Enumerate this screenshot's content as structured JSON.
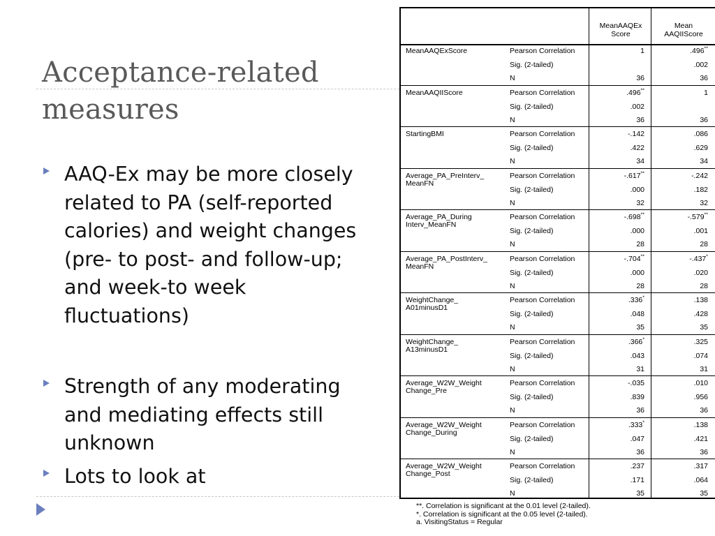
{
  "title": "Acceptance-related measures",
  "bullets": [
    "AAQ-Ex may be more closely related to PA (self-reported calories) and weight changes (pre- to post- and follow-up; and week-to week fluctuations)",
    "Strength of any moderating and mediating effects still unknown",
    "Lots to look at"
  ],
  "colors": {
    "title": "#595959",
    "bullet_marker": "#6b7fbf",
    "divider": "#c8c8c8"
  },
  "table": {
    "columns": [
      "MeanAAQEx\nScore",
      "Mean\nAAQIIScore"
    ],
    "stats": [
      "Pearson Correlation",
      "Sig. (2-tailed)",
      "N"
    ],
    "rows": [
      {
        "variable": "MeanAAQExScore",
        "col1": {
          "r": "1",
          "r_sig": "",
          "p": "",
          "n": "36"
        },
        "col2": {
          "r": ".496",
          "r_sig": "**",
          "p": ".002",
          "n": "36"
        }
      },
      {
        "variable": "MeanAAQIIScore",
        "col1": {
          "r": ".496",
          "r_sig": "**",
          "p": ".002",
          "n": "36"
        },
        "col2": {
          "r": "1",
          "r_sig": "",
          "p": "",
          "n": "36"
        }
      },
      {
        "variable": "StartingBMI",
        "col1": {
          "r": "-.142",
          "r_sig": "",
          "p": ".422",
          "n": "34"
        },
        "col2": {
          "r": ".086",
          "r_sig": "",
          "p": ".629",
          "n": "34"
        }
      },
      {
        "variable": "Average_PA_PreInterv_\nMeanFN",
        "col1": {
          "r": "-.617",
          "r_sig": "**",
          "p": ".000",
          "n": "32"
        },
        "col2": {
          "r": "-.242",
          "r_sig": "",
          "p": ".182",
          "n": "32"
        }
      },
      {
        "variable": "Average_PA_During\nInterv_MeanFN",
        "col1": {
          "r": "-.698",
          "r_sig": "**",
          "p": ".000",
          "n": "28"
        },
        "col2": {
          "r": "-.579",
          "r_sig": "**",
          "p": ".001",
          "n": "28"
        }
      },
      {
        "variable": "Average_PA_PostInterv_\nMeanFN",
        "col1": {
          "r": "-.704",
          "r_sig": "**",
          "p": ".000",
          "n": "28"
        },
        "col2": {
          "r": "-.437",
          "r_sig": "*",
          "p": ".020",
          "n": "28"
        }
      },
      {
        "variable": "WeightChange_\nA01minusD1",
        "col1": {
          "r": ".336",
          "r_sig": "*",
          "p": ".048",
          "n": "35"
        },
        "col2": {
          "r": ".138",
          "r_sig": "",
          "p": ".428",
          "n": "35"
        }
      },
      {
        "variable": "WeightChange_\nA13minusD1",
        "col1": {
          "r": ".366",
          "r_sig": "*",
          "p": ".043",
          "n": "31"
        },
        "col2": {
          "r": ".325",
          "r_sig": "",
          "p": ".074",
          "n": "31"
        }
      },
      {
        "variable": "Average_W2W_Weight\nChange_Pre",
        "col1": {
          "r": "-.035",
          "r_sig": "",
          "p": ".839",
          "n": "36"
        },
        "col2": {
          "r": ".010",
          "r_sig": "",
          "p": ".956",
          "n": "36"
        }
      },
      {
        "variable": "Average_W2W_Weight\nChange_During",
        "col1": {
          "r": ".333",
          "r_sig": "*",
          "p": ".047",
          "n": "36"
        },
        "col2": {
          "r": ".138",
          "r_sig": "",
          "p": ".421",
          "n": "36"
        }
      },
      {
        "variable": "Average_W2W_Weight\nChange_Post",
        "col1": {
          "r": ".237",
          "r_sig": "",
          "p": ".171",
          "n": "35"
        },
        "col2": {
          "r": ".317",
          "r_sig": "",
          "p": ".064",
          "n": "35"
        }
      }
    ]
  },
  "footnotes": [
    "**. Correlation is significant at the 0.01 level (2-tailed).",
    "*. Correlation is significant at the 0.05 level (2-tailed).",
    "a. VisitingStatus = Regular"
  ]
}
